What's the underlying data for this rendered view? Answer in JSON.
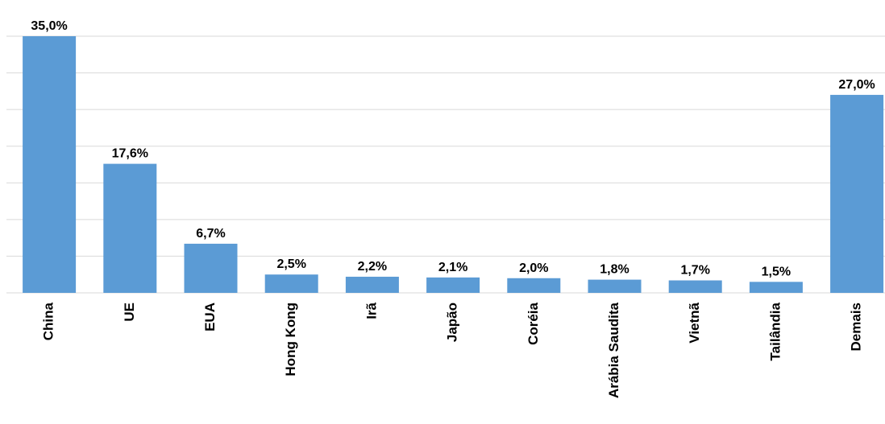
{
  "chart_data": {
    "type": "bar",
    "categories": [
      "China",
      "UE",
      "EUA",
      "Hong Kong",
      "Irã",
      "Japão",
      "Coréia",
      "Arábia Saudita",
      "Vietnã",
      "Tailândia",
      "Demais"
    ],
    "values": [
      35.0,
      17.6,
      6.7,
      2.5,
      2.2,
      2.1,
      2.0,
      1.8,
      1.7,
      1.5,
      27.0
    ],
    "value_labels": [
      "35,0%",
      "17,6%",
      "6,7%",
      "2,5%",
      "2,2%",
      "2,1%",
      "2,0%",
      "1,8%",
      "1,7%",
      "1,5%",
      "27,0%"
    ],
    "color": "#5b9bd5",
    "ylim": [
      0,
      35
    ],
    "yticks": [
      0,
      5,
      10,
      15,
      20,
      25,
      30,
      35
    ],
    "grid": true
  }
}
